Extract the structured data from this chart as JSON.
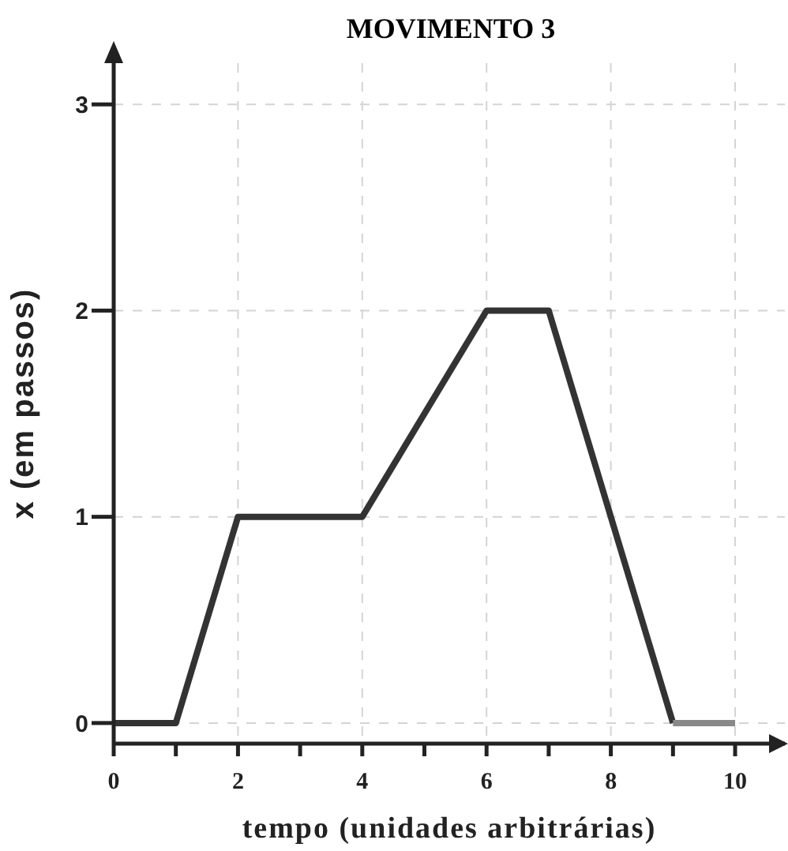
{
  "chart_data": {
    "type": "line",
    "title": "MOVIMENTO 3",
    "xlabel": "tempo (unidades arbitrárias)",
    "ylabel": "x (em passos)",
    "series": [
      {
        "color": "#333333",
        "x": [
          0,
          1,
          2,
          4,
          6,
          7,
          9
        ],
        "values": [
          0,
          0,
          1,
          1,
          2,
          2,
          0
        ]
      },
      {
        "color": "#888888",
        "x": [
          9,
          10
        ],
        "values": [
          0,
          0
        ]
      }
    ],
    "xlim": [
      0,
      10.8
    ],
    "xticks": [
      0,
      {
        "value": 1,
        "label": null
      },
      2,
      {
        "value": 3,
        "label": null
      },
      4,
      {
        "value": 5,
        "label": null
      },
      6,
      {
        "value": 7,
        "label": null
      },
      8,
      {
        "value": 9,
        "label": null
      },
      10
    ],
    "ylim": [
      -0.1,
      3.2
    ],
    "yticks": [
      0,
      1,
      2,
      3
    ],
    "grid": true,
    "marker": "none",
    "line_style": "solid",
    "legend": false
  }
}
